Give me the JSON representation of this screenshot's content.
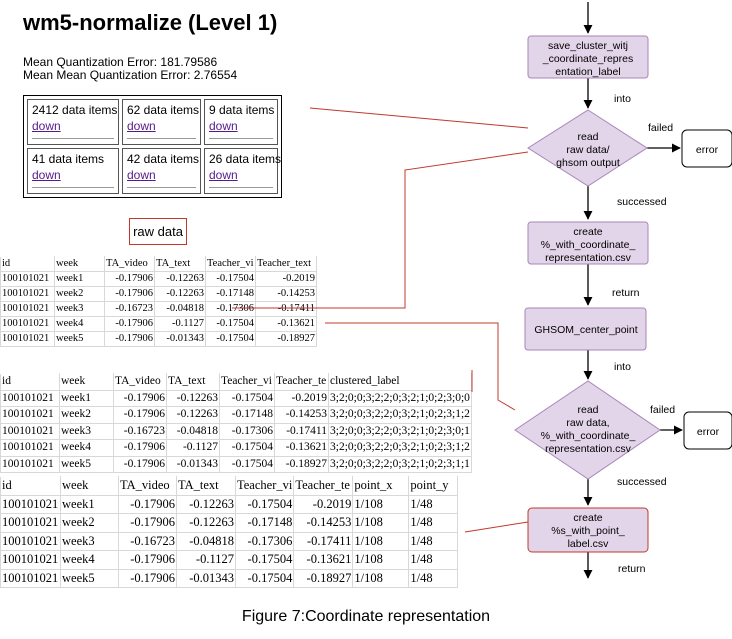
{
  "title": "wm5-normalize (Level 1)",
  "metrics": {
    "mqe": "Mean Quantization Error: 181.79586",
    "mmqe": "Mean Mean Quantization Error: 2.76554"
  },
  "grid": {
    "cells": [
      {
        "count": "2412 data items",
        "link": "down"
      },
      {
        "count": "62 data items",
        "link": "down"
      },
      {
        "count": "9 data items",
        "link": "down"
      },
      {
        "count": "41 data items",
        "link": "down"
      },
      {
        "count": "42 data items",
        "link": "down"
      },
      {
        "count": "26 data items",
        "link": "down"
      }
    ]
  },
  "raw_label": "raw data",
  "tables": {
    "t1": {
      "headers": [
        "id",
        "week",
        "TA_video",
        "TA_text",
        "Teacher_vi",
        "Teacher_text"
      ],
      "rows": [
        [
          "100101021",
          "week1",
          "-0.17906",
          "-0.12263",
          "-0.17504",
          "-0.2019"
        ],
        [
          "100101021",
          "week2",
          "-0.17906",
          "-0.12263",
          "-0.17148",
          "-0.14253"
        ],
        [
          "100101021",
          "week3",
          "-0.16723",
          "-0.04818",
          "-0.17306",
          "-0.17411"
        ],
        [
          "100101021",
          "week4",
          "-0.17906",
          "-0.1127",
          "-0.17504",
          "-0.13621"
        ],
        [
          "100101021",
          "week5",
          "-0.17906",
          "-0.01343",
          "-0.17504",
          "-0.18927"
        ]
      ]
    },
    "t2": {
      "headers": [
        "id",
        "week",
        "TA_video",
        "TA_text",
        "Teacher_vi",
        "Teacher_te",
        "clustered_label"
      ],
      "rows": [
        [
          "100101021",
          "week1",
          "-0.17906",
          "-0.12263",
          "-0.17504",
          "-0.2019",
          "3;2;0;0;3;2;2;0;3;2;1;0;2;3;0;0"
        ],
        [
          "100101021",
          "week2",
          "-0.17906",
          "-0.12263",
          "-0.17148",
          "-0.14253",
          "3;2;0;0;3;2;2;0;3;2;1;0;2;3;1;2"
        ],
        [
          "100101021",
          "week3",
          "-0.16723",
          "-0.04818",
          "-0.17306",
          "-0.17411",
          "3;2;0;0;3;2;2;0;3;2;1;0;2;3;0;1"
        ],
        [
          "100101021",
          "week4",
          "-0.17906",
          "-0.1127",
          "-0.17504",
          "-0.13621",
          "3;2;0;0;3;2;2;0;3;2;1;0;2;3;1;2"
        ],
        [
          "100101021",
          "week5",
          "-0.17906",
          "-0.01343",
          "-0.17504",
          "-0.18927",
          "3;2;0;0;3;2;2;0;3;2;1;0;2;3;1;1"
        ]
      ]
    },
    "t3": {
      "headers": [
        "id",
        "week",
        "TA_video",
        "TA_text",
        "Teacher_vi",
        "Teacher_te",
        "point_x",
        "point_y"
      ],
      "rows": [
        [
          "100101021",
          "week1",
          "-0.17906",
          "-0.12263",
          "-0.17504",
          "-0.2019",
          "1/108",
          "1/48"
        ],
        [
          "100101021",
          "week2",
          "-0.17906",
          "-0.12263",
          "-0.17148",
          "-0.14253",
          "1/108",
          "1/48"
        ],
        [
          "100101021",
          "week3",
          "-0.16723",
          "-0.04818",
          "-0.17306",
          "-0.17411",
          "1/108",
          "1/48"
        ],
        [
          "100101021",
          "week4",
          "-0.17906",
          "-0.1127",
          "-0.17504",
          "-0.13621",
          "1/108",
          "1/48"
        ],
        [
          "100101021",
          "week5",
          "-0.17906",
          "-0.01343",
          "-0.17504",
          "-0.18927",
          "1/108",
          "1/48"
        ]
      ]
    }
  },
  "flow": {
    "box1": [
      "save_cluster_witj",
      "_coordinate_repres",
      "entation_label"
    ],
    "into1": "into",
    "decision1": [
      "read",
      "raw data/",
      "ghsom output"
    ],
    "failed1": "failed",
    "error1": "error",
    "successed1": "successed",
    "box2": [
      "create",
      "%_with_coordinate_",
      "representation.csv"
    ],
    "return1": "return",
    "box3": "GHSOM_center_point",
    "into2": "into",
    "decision2": [
      "read",
      "raw data,",
      "%_with_coordinate_",
      "representation.csv"
    ],
    "failed2": "failed",
    "error2": "error",
    "successed2": "successed",
    "box4": [
      "create",
      "%s_with_point_",
      "label.csv"
    ],
    "return2": "return"
  },
  "caption": "Figure 7:Coordinate representation",
  "colors": {
    "node_fill": "#e2d5e9",
    "node_stroke": "#a985b8",
    "connector_red": "#c0392b"
  }
}
